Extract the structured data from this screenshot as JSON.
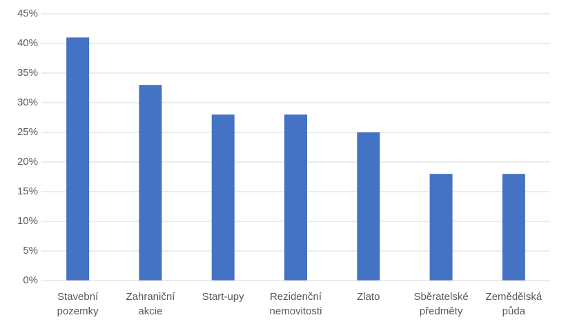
{
  "chart_data": {
    "type": "bar",
    "categories": [
      "Stavební pozemky",
      "Zahraniční akcie",
      "Start-upy",
      "Rezidenční nemovitosti",
      "Zlato",
      "Sběratelské předměty",
      "Zemědělská půda"
    ],
    "values": [
      41,
      33,
      28,
      28,
      25,
      18,
      18
    ],
    "color": "#4472c4",
    "ylim": [
      0,
      45
    ],
    "yticks": [
      {
        "value": 0,
        "label": "0%"
      },
      {
        "value": 5,
        "label": "5%"
      },
      {
        "value": 10,
        "label": "10%"
      },
      {
        "value": 15,
        "label": "15%"
      },
      {
        "value": 20,
        "label": "20%"
      },
      {
        "value": 25,
        "label": "25%"
      },
      {
        "value": 30,
        "label": "30%"
      },
      {
        "value": 35,
        "label": "35%"
      },
      {
        "value": 40,
        "label": "40%"
      },
      {
        "value": 45,
        "label": "45%"
      }
    ],
    "grid": true
  }
}
